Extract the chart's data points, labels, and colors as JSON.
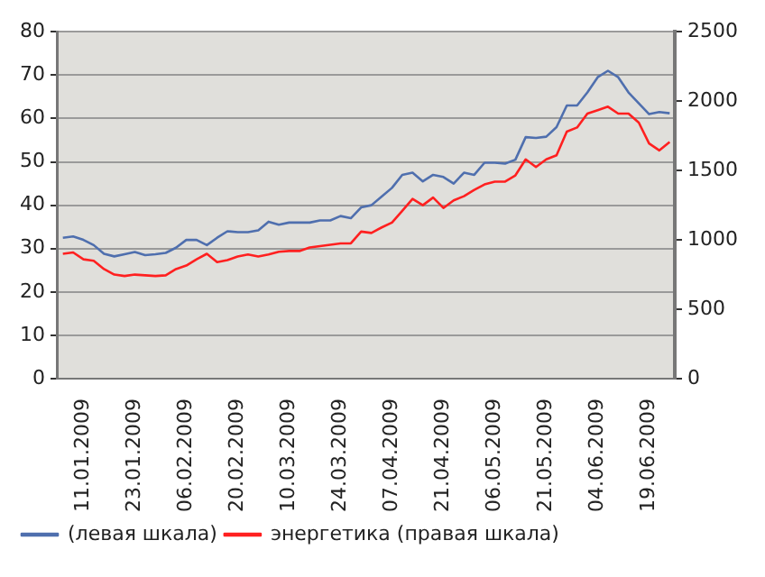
{
  "chart_data": {
    "type": "line",
    "categories": [
      null,
      null,
      "11.01.2009",
      null,
      null,
      null,
      null,
      "23.01.2009",
      null,
      null,
      null,
      null,
      "06.02.2009",
      null,
      null,
      null,
      null,
      "20.02.2009",
      null,
      null,
      null,
      null,
      "10.03.2009",
      null,
      null,
      null,
      null,
      "24.03.2009",
      null,
      null,
      null,
      null,
      "07.04.2009",
      null,
      null,
      null,
      null,
      "21.04.2009",
      null,
      null,
      null,
      null,
      "06.05.2009",
      null,
      null,
      null,
      null,
      "21.05.2009",
      null,
      null,
      null,
      null,
      "04.06.2009",
      null,
      null,
      null,
      null,
      "19.06.2009",
      null,
      null
    ],
    "series": [
      {
        "name": "(левая шкала)",
        "color": "#4f6fae",
        "values": [
          32.5,
          32.8,
          32,
          30.8,
          28.8,
          28.2,
          28.7,
          29.2,
          28.5,
          28.7,
          29,
          30.2,
          32,
          32,
          30.8,
          32.5,
          34,
          33.8,
          33.8,
          34.2,
          36.2,
          35.5,
          36,
          36,
          36,
          36.5,
          36.5,
          37.5,
          37,
          39.5,
          40,
          42,
          44,
          47,
          47.5,
          45.5,
          47,
          46.5,
          45,
          47.5,
          47,
          49.8,
          49.8,
          49.6,
          50.5,
          55.7,
          55.5,
          55.8,
          58,
          63,
          63,
          66,
          69.5,
          71,
          69.5,
          66,
          63.5,
          61,
          61.5,
          61.2
        ]
      },
      {
        "name": "энергетика (правая шкала)",
        "color": "#ff2020",
        "axis": "y2",
        "values": [
          900,
          910,
          860,
          850,
          790,
          750,
          740,
          750,
          745,
          740,
          745,
          790,
          815,
          860,
          900,
          840,
          855,
          880,
          895,
          880,
          895,
          915,
          920,
          920,
          945,
          955,
          965,
          975,
          975,
          1060,
          1050,
          1090,
          1125,
          1210,
          1295,
          1250,
          1305,
          1230,
          1285,
          1315,
          1360,
          1400,
          1420,
          1420,
          1465,
          1580,
          1525,
          1580,
          1610,
          1780,
          1810,
          1910,
          1935,
          1960,
          1910,
          1910,
          1845,
          1695,
          1645,
          1705
        ]
      }
    ],
    "ylim": [
      0,
      80
    ],
    "yticks": [
      0,
      10,
      20,
      30,
      40,
      50,
      60,
      70,
      80
    ],
    "y2lim": [
      0,
      2500
    ],
    "y2ticks": [
      0,
      500,
      1000,
      1500,
      2000,
      2500
    ],
    "grid": "y",
    "legend": "bottom left",
    "marker": "none",
    "line_style": "solid"
  }
}
